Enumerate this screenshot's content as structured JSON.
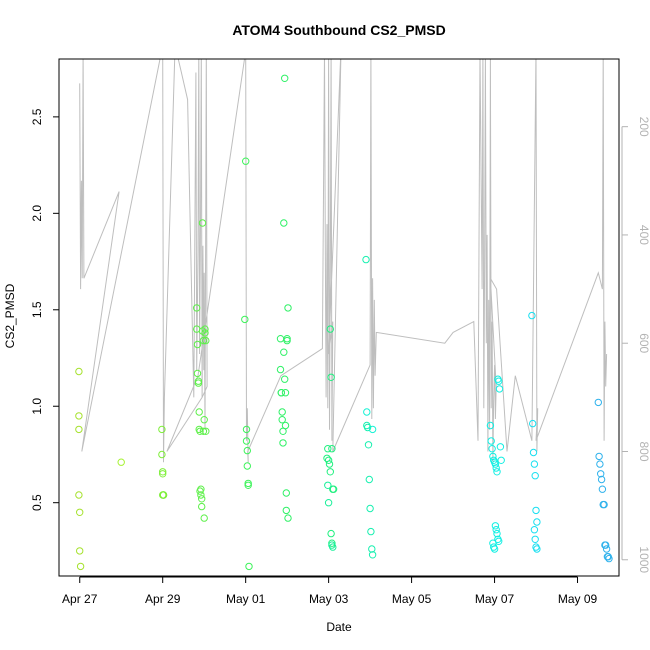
{
  "chart_data": {
    "type": "scatter",
    "title": "ATOM4 Southbound CS2_PMSD",
    "xlabel": "Date",
    "ylabel": "CS2_PMSD",
    "x_tick_labels": [
      "Apr 27",
      "Apr 29",
      "May 01",
      "May 03",
      "May 05",
      "May 07",
      "May 09"
    ],
    "x_tick_days": [
      0,
      2,
      4,
      6,
      8,
      10,
      12
    ],
    "x_range_days": [
      -0.5,
      13.0
    ],
    "x_origin_label": "Apr 27",
    "ylim": [
      0.12,
      2.8
    ],
    "y_ticks": [
      0.5,
      1.0,
      1.5,
      2.0,
      2.5
    ],
    "y_tick_labels": [
      "0.5",
      "1.0",
      "1.5",
      "2.0",
      "2.5"
    ],
    "y2_ticks": [
      200,
      400,
      600,
      800,
      1000
    ],
    "y2_tick_labels": [
      "200",
      "400",
      "600",
      "800",
      "1000"
    ],
    "y2_range_top_to_bottom": [
      75,
      1030
    ],
    "secondary_line_color": "#bebebe",
    "secondary_trace": [
      [
        0.0,
        120
      ],
      [
        0.02,
        500
      ],
      [
        0.04,
        300
      ],
      [
        0.06,
        480
      ],
      [
        0.08,
        60
      ],
      [
        0.1,
        480
      ],
      [
        0.95,
        320
      ],
      [
        0.05,
        800
      ],
      [
        2.0,
        50
      ],
      [
        2.02,
        820
      ],
      [
        2.04,
        700
      ],
      [
        2.3,
        50
      ],
      [
        2.45,
        100
      ],
      [
        2.6,
        150
      ],
      [
        2.75,
        700
      ],
      [
        2.8,
        100
      ],
      [
        2.82,
        650
      ],
      [
        2.85,
        430
      ],
      [
        2.87,
        60
      ],
      [
        2.89,
        620
      ],
      [
        2.91,
        380
      ],
      [
        2.93,
        60
      ],
      [
        2.95,
        700
      ],
      [
        2.97,
        420
      ],
      [
        2.99,
        650
      ],
      [
        3.0,
        470
      ],
      [
        3.02,
        760
      ],
      [
        3.05,
        60
      ],
      [
        3.07,
        680
      ],
      [
        2.95,
        700
      ],
      [
        2.1,
        800
      ],
      [
        2.85,
        660
      ],
      [
        4.0,
        60
      ],
      [
        4.02,
        780
      ],
      [
        4.04,
        720
      ],
      [
        4.06,
        820
      ],
      [
        4.05,
        800
      ],
      [
        4.85,
        660
      ],
      [
        5.85,
        610
      ],
      [
        5.9,
        60
      ],
      [
        5.92,
        420
      ],
      [
        5.94,
        700
      ],
      [
        5.96,
        380
      ],
      [
        5.98,
        720
      ],
      [
        6.0,
        60
      ],
      [
        6.02,
        760
      ],
      [
        6.04,
        470
      ],
      [
        6.06,
        60
      ],
      [
        6.08,
        780
      ],
      [
        6.1,
        560
      ],
      [
        6.0,
        620
      ],
      [
        6.3,
        50
      ],
      [
        6.1,
        800
      ],
      [
        7.0,
        640
      ],
      [
        7.02,
        60
      ],
      [
        7.04,
        740
      ],
      [
        7.06,
        480
      ],
      [
        7.08,
        720
      ],
      [
        7.1,
        520
      ],
      [
        7.12,
        660
      ],
      [
        7.15,
        580
      ],
      [
        8.8,
        600
      ],
      [
        9.0,
        580
      ],
      [
        9.5,
        560
      ],
      [
        9.6,
        780
      ],
      [
        9.65,
        60
      ],
      [
        9.7,
        500
      ],
      [
        9.72,
        60
      ],
      [
        9.74,
        720
      ],
      [
        9.76,
        460
      ],
      [
        9.78,
        60
      ],
      [
        9.8,
        600
      ],
      [
        9.82,
        400
      ],
      [
        9.84,
        800
      ],
      [
        9.86,
        520
      ],
      [
        9.88,
        760
      ],
      [
        9.9,
        60
      ],
      [
        9.92,
        720
      ],
      [
        9.94,
        560
      ],
      [
        9.96,
        820
      ],
      [
        9.98,
        700
      ],
      [
        10.0,
        640
      ],
      [
        10.02,
        740
      ],
      [
        10.04,
        680
      ],
      [
        9.9,
        480
      ],
      [
        10.05,
        500
      ],
      [
        10.3,
        800
      ],
      [
        10.5,
        660
      ],
      [
        10.9,
        780
      ],
      [
        11.0,
        60
      ],
      [
        11.02,
        800
      ],
      [
        11.04,
        720
      ],
      [
        11.0,
        780
      ],
      [
        12.5,
        470
      ],
      [
        12.6,
        500
      ],
      [
        12.62,
        60
      ],
      [
        12.64,
        780
      ],
      [
        12.66,
        560
      ],
      [
        12.68,
        680
      ],
      [
        12.7,
        620
      ]
    ],
    "point_series": [
      {
        "color": "#a6e22e",
        "x": [
          -0.02,
          -0.02,
          -0.02,
          -0.02,
          0.0,
          0.0,
          0.02
        ],
        "y": [
          1.18,
          0.95,
          0.88,
          0.54,
          0.45,
          0.25,
          0.17
        ]
      },
      {
        "color": "#a6f232",
        "x": [
          1.0
        ],
        "y": [
          0.71
        ]
      },
      {
        "color": "#7fef3a",
        "x": [
          1.98,
          1.98,
          2.0,
          2.0,
          2.0,
          2.02,
          2.02,
          2.02
        ],
        "y": [
          0.88,
          0.75,
          0.65,
          0.66,
          0.54,
          0.54,
          0.54,
          0.54
        ]
      },
      {
        "color": "#5ef04a",
        "x": [
          2.82,
          2.82,
          2.84,
          2.84,
          2.86,
          2.86,
          2.88,
          2.88,
          2.9,
          2.9,
          2.92,
          2.92,
          2.94,
          2.94,
          2.96,
          2.96,
          2.98,
          2.98,
          3.0,
          3.0,
          3.02,
          3.02,
          3.04,
          3.04
        ],
        "y": [
          1.51,
          1.4,
          1.32,
          1.17,
          1.13,
          1.12,
          0.97,
          0.88,
          0.87,
          0.56,
          0.57,
          0.54,
          0.52,
          0.48,
          1.95,
          1.39,
          1.34,
          0.87,
          0.42,
          0.93,
          1.38,
          1.4,
          1.34,
          0.87
        ]
      },
      {
        "color": "#3df35a",
        "x": [
          3.98,
          4.0,
          4.02,
          4.02,
          4.04,
          4.04,
          4.06,
          4.06,
          4.08
        ],
        "y": [
          1.45,
          2.27,
          0.88,
          0.82,
          0.77,
          0.69,
          0.6,
          0.59,
          0.17
        ]
      },
      {
        "color": "#2ff166",
        "x": [
          4.84,
          4.84,
          4.86,
          4.86,
          4.88,
          4.88,
          4.9,
          4.9,
          4.92,
          4.92,
          4.94,
          4.94,
          4.96,
          4.96,
          4.98,
          4.98,
          5.0,
          5.0,
          5.02,
          5.02
        ],
        "y": [
          1.35,
          1.19,
          1.07,
          1.07,
          0.97,
          0.93,
          0.87,
          0.81,
          1.95,
          1.28,
          2.7,
          1.14,
          1.07,
          0.9,
          0.55,
          0.46,
          1.34,
          1.35,
          0.42,
          1.51
        ]
      },
      {
        "color": "#1ff07f",
        "x": [
          5.96,
          5.98,
          6.0,
          6.02,
          6.04,
          6.04,
          6.06,
          6.08,
          6.1,
          6.12,
          6.06,
          6.08
        ],
        "y": [
          0.73,
          0.78,
          0.72,
          0.7,
          0.66,
          1.4,
          1.15,
          0.78,
          0.57,
          0.57,
          0.34,
          0.29
        ]
      },
      {
        "color": "#19f09a",
        "x": [
          5.98,
          6.0,
          6.08,
          6.1
        ],
        "y": [
          0.59,
          0.5,
          0.28,
          0.27
        ]
      },
      {
        "color": "#18f0b0",
        "x": [
          6.9,
          6.92,
          6.94,
          6.96,
          6.98,
          7.0,
          7.02,
          7.04,
          7.06
        ],
        "y": [
          1.76,
          0.9,
          0.89,
          0.8,
          0.62,
          0.47,
          0.35,
          0.26,
          0.23
        ]
      },
      {
        "color": "#18f2d5",
        "x": [
          6.92,
          7.06
        ],
        "y": [
          0.97,
          0.88
        ]
      },
      {
        "color": "#12efe3",
        "x": [
          9.9,
          9.92,
          9.94,
          9.96,
          9.98,
          10.0,
          10.02,
          10.04,
          10.06,
          10.08,
          10.1,
          10.12,
          10.14,
          10.16,
          9.96,
          9.98,
          10.0,
          10.02,
          10.04,
          10.06,
          10.08,
          10.1
        ],
        "y": [
          0.9,
          0.82,
          0.78,
          0.74,
          0.72,
          0.71,
          0.7,
          0.68,
          0.66,
          1.14,
          1.13,
          1.09,
          0.79,
          0.72,
          0.29,
          0.27,
          0.26,
          0.38,
          0.36,
          0.34,
          0.31,
          0.3
        ]
      },
      {
        "color": "#18dff0",
        "x": [
          10.9,
          10.92,
          10.94,
          10.96,
          10.98,
          11.0,
          11.02,
          10.96,
          10.98,
          11.0,
          11.02
        ],
        "y": [
          1.47,
          0.91,
          0.76,
          0.7,
          0.64,
          0.46,
          0.4,
          0.36,
          0.31,
          0.27,
          0.26
        ]
      },
      {
        "color": "#2fb2ec",
        "x": [
          12.5,
          12.52,
          12.54,
          12.56,
          12.58,
          12.6,
          12.62,
          12.64,
          12.66,
          12.68,
          12.7,
          12.72,
          12.74,
          12.76
        ],
        "y": [
          1.02,
          0.74,
          0.7,
          0.65,
          0.62,
          0.57,
          0.49,
          0.49,
          0.28,
          0.28,
          0.26,
          0.22,
          0.22,
          0.21
        ]
      }
    ]
  }
}
